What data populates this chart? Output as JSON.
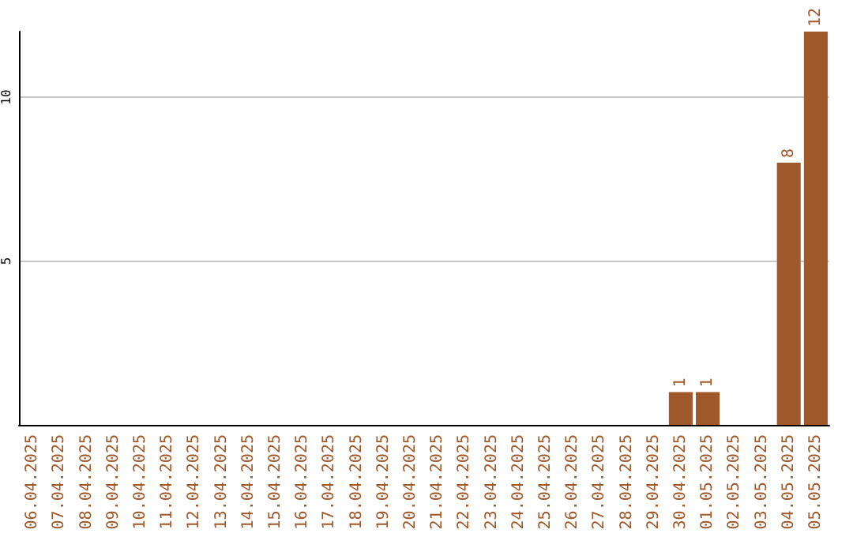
{
  "chart_data": {
    "type": "bar",
    "categories": [
      "06.04.2025",
      "07.04.2025",
      "08.04.2025",
      "09.04.2025",
      "10.04.2025",
      "11.04.2025",
      "12.04.2025",
      "13.04.2025",
      "14.04.2025",
      "15.04.2025",
      "16.04.2025",
      "17.04.2025",
      "18.04.2025",
      "19.04.2025",
      "20.04.2025",
      "21.04.2025",
      "22.04.2025",
      "23.04.2025",
      "24.04.2025",
      "25.04.2025",
      "26.04.2025",
      "27.04.2025",
      "28.04.2025",
      "29.04.2025",
      "30.04.2025",
      "01.05.2025",
      "02.05.2025",
      "03.05.2025",
      "04.05.2025",
      "05.05.2025"
    ],
    "values": [
      0,
      0,
      0,
      0,
      0,
      0,
      0,
      0,
      0,
      0,
      0,
      0,
      0,
      0,
      0,
      0,
      0,
      0,
      0,
      0,
      0,
      0,
      0,
      0,
      1,
      1,
      0,
      0,
      8,
      12
    ],
    "value_labels": [
      null,
      null,
      null,
      null,
      null,
      null,
      null,
      null,
      null,
      null,
      null,
      null,
      null,
      null,
      null,
      null,
      null,
      null,
      null,
      null,
      null,
      null,
      null,
      null,
      "1",
      "1",
      null,
      null,
      "8",
      "12"
    ],
    "color": "#a0592a",
    "ylim": [
      0,
      12
    ],
    "yticks": [
      5,
      10
    ],
    "grid": "y"
  }
}
